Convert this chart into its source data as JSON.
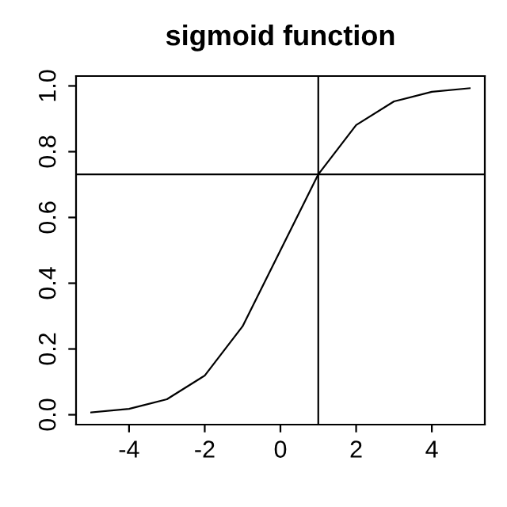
{
  "chart_data": {
    "type": "line",
    "title": "sigmoid function",
    "x": [
      -5,
      -4,
      -3,
      -2,
      -1,
      0,
      1,
      2,
      3,
      4,
      5
    ],
    "series": [
      {
        "color": "#000000",
        "values": [
          0.007,
          0.018,
          0.047,
          0.119,
          0.269,
          0.5,
          0.731,
          0.881,
          0.953,
          0.982,
          0.993
        ]
      }
    ],
    "xlim": [
      -5.4,
      5.4
    ],
    "xticks": [
      -4,
      -2,
      0,
      2,
      4
    ],
    "ylim": [
      -0.03,
      1.03
    ],
    "yticks": [
      {
        "value": 0,
        "label": "0.0"
      },
      0.2,
      0.4,
      0.6,
      0.8,
      {
        "value": 1,
        "label": "1.0"
      }
    ],
    "ref_lines": [
      {
        "axis": "x",
        "value": 1,
        "color": "#000000"
      },
      {
        "axis": "y",
        "value": 0.731,
        "color": "#000000"
      }
    ],
    "grid": false,
    "legend": false,
    "marker": "none",
    "line_style": "solid"
  }
}
